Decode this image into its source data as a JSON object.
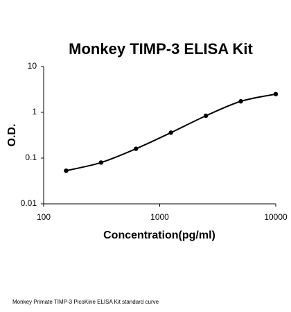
{
  "chart_data": {
    "type": "scatter",
    "title": "Monkey TIMP-3 ELISA Kit",
    "x_label": "Concentration(pg/ml)",
    "y_label": "O.D.",
    "caption": "Monkey Primate TIMP-3 PicoKine ELISA Kit standard curve",
    "x_log": true,
    "y_log": true,
    "smooth_line": true,
    "color": "#000000",
    "xlim": [
      100,
      10000
    ],
    "ylim": [
      0.01,
      10
    ],
    "xticks": [
      100,
      1000,
      10000
    ],
    "yticks": [
      0.01,
      0.1,
      1,
      10
    ],
    "series": [
      {
        "x": [
          156.25,
          312.5,
          625,
          1250,
          2500,
          5000,
          10000
        ],
        "values": [
          0.053,
          0.08,
          0.16,
          0.36,
          0.84,
          1.74,
          2.5
        ]
      }
    ]
  }
}
